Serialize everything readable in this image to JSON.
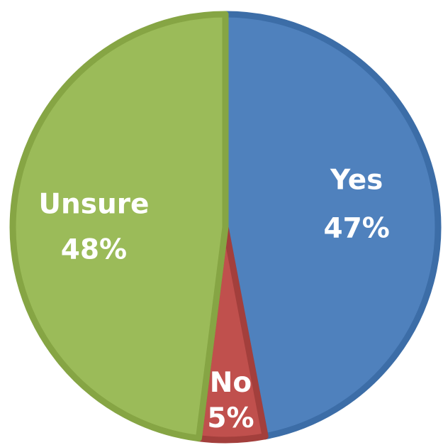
{
  "chart_data": {
    "type": "pie",
    "title": "",
    "slices": [
      {
        "label": "Yes",
        "value": 47,
        "display": "47%",
        "color": "#4f81bd",
        "border": "#3c6da7"
      },
      {
        "label": "No",
        "value": 5,
        "display": "5%",
        "color": "#c0504d",
        "border": "#a33f3c"
      },
      {
        "label": "Unsure",
        "value": 48,
        "display": "48%",
        "color": "#9bbb59",
        "border": "#86a544"
      }
    ],
    "start": "12 o'clock",
    "direction": "clockwise",
    "legend": "none"
  }
}
